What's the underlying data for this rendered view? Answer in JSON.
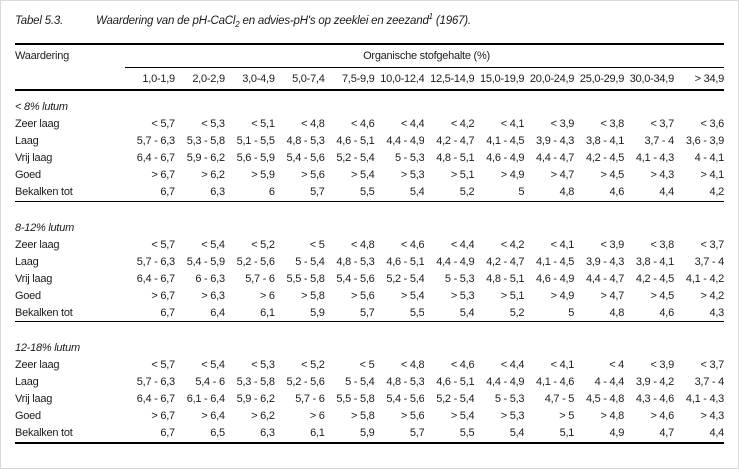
{
  "title": {
    "number": "Tabel 5.3.",
    "part1": "Waardering van de pH-CaCl",
    "subscript": "2",
    "part2": " en advies-pH's op zeeklei en zeezand",
    "superscript": "1",
    "part3": " (1967)."
  },
  "table": {
    "corner_header": "Waardering",
    "group_header": "Organische stofgehalte (%)",
    "columns": [
      "1,0-1,9",
      "2,0-2,9",
      "3,0-4,9",
      "5,0-7,4",
      "7,5-9,9",
      "10,0-12,4",
      "12,5-14,9",
      "15,0-19,9",
      "20,0-24,9",
      "25,0-29,9",
      "30,0-34,9",
      "> 34,9"
    ],
    "sections": [
      {
        "name": "< 8% lutum",
        "rows": [
          {
            "label": "Zeer laag",
            "values": [
              "< 5,7",
              "< 5,3",
              "< 5,1",
              "< 4,8",
              "< 4,6",
              "< 4,4",
              "< 4,2",
              "< 4,1",
              "< 3,9",
              "< 3,8",
              "< 3,7",
              "< 3,6"
            ]
          },
          {
            "label": "Laag",
            "values": [
              "5,7 - 6,3",
              "5,3 - 5,8",
              "5,1 - 5,5",
              "4,8 - 5,3",
              "4,6 - 5,1",
              "4,4 - 4,9",
              "4,2 - 4,7",
              "4,1 - 4,5",
              "3,9 - 4,3",
              "3,8 - 4,1",
              "3,7 - 4",
              "3,6 - 3,9"
            ]
          },
          {
            "label": "Vrij laag",
            "values": [
              "6,4 - 6,7",
              "5,9 - 6,2",
              "5,6 - 5,9",
              "5,4 - 5,6",
              "5,2 - 5,4",
              "5 - 5,3",
              "4,8 - 5,1",
              "4,6 - 4,9",
              "4,4 - 4,7",
              "4,2 - 4,5",
              "4,1 - 4,3",
              "4 - 4,1"
            ]
          },
          {
            "label": "Goed",
            "values": [
              "> 6,7",
              "> 6,2",
              "> 5,9",
              "> 5,6",
              "> 5,4",
              "> 5,3",
              "> 5,1",
              "> 4,9",
              "> 4,7",
              "> 4,5",
              "> 4,3",
              "> 4,1"
            ]
          },
          {
            "label": "Bekalken tot",
            "values": [
              "6,7",
              "6,3",
              "6",
              "5,7",
              "5,5",
              "5,4",
              "5,2",
              "5",
              "4,8",
              "4,6",
              "4,4",
              "4,2"
            ]
          }
        ]
      },
      {
        "name": "8-12% lutum",
        "rows": [
          {
            "label": "Zeer laag",
            "values": [
              "< 5,7",
              "< 5,4",
              "< 5,2",
              "< 5",
              "< 4,8",
              "< 4,6",
              "< 4,4",
              "< 4,2",
              "< 4,1",
              "< 3,9",
              "< 3,8",
              "< 3,7"
            ]
          },
          {
            "label": "Laag",
            "values": [
              "5,7 - 6,3",
              "5,4 - 5,9",
              "5,2 - 5,6",
              "5 - 5,4",
              "4,8 - 5,3",
              "4,6 - 5,1",
              "4,4 - 4,9",
              "4,2 - 4,7",
              "4,1 - 4,5",
              "3,9 - 4,3",
              "3,8 - 4,1",
              "3,7 - 4"
            ]
          },
          {
            "label": "Vrij laag",
            "values": [
              "6,4 - 6,7",
              "6 - 6,3",
              "5,7 - 6",
              "5,5 - 5,8",
              "5,4 - 5,6",
              "5,2 - 5,4",
              "5 - 5,3",
              "4,8 - 5,1",
              "4,6 - 4,9",
              "4,4 - 4,7",
              "4,2 - 4,5",
              "4,1 - 4,2"
            ]
          },
          {
            "label": "Goed",
            "values": [
              "> 6,7",
              "> 6,3",
              "> 6",
              "> 5,8",
              "> 5,6",
              "> 5,4",
              "> 5,3",
              "> 5,1",
              "> 4,9",
              "> 4,7",
              "> 4,5",
              "> 4,2"
            ]
          },
          {
            "label": "Bekalken tot",
            "values": [
              "6,7",
              "6,4",
              "6,1",
              "5,9",
              "5,7",
              "5,5",
              "5,4",
              "5,2",
              "5",
              "4,8",
              "4,6",
              "4,3"
            ]
          }
        ]
      },
      {
        "name": "12-18% lutum",
        "rows": [
          {
            "label": "Zeer laag",
            "values": [
              "< 5,7",
              "< 5,4",
              "< 5,3",
              "< 5,2",
              "< 5",
              "< 4,8",
              "< 4,6",
              "< 4,4",
              "< 4,1",
              "< 4",
              "< 3,9",
              "< 3,7"
            ]
          },
          {
            "label": "Laag",
            "values": [
              "5,7 - 6,3",
              "5,4 - 6",
              "5,3 - 5,8",
              "5,2 - 5,6",
              "5 - 5,4",
              "4,8 - 5,3",
              "4,6 - 5,1",
              "4,4 - 4,9",
              "4,1 - 4,6",
              "4 - 4,4",
              "3,9 - 4,2",
              "3,7 - 4"
            ]
          },
          {
            "label": "Vrij laag",
            "values": [
              "6,4 - 6,7",
              "6,1 - 6,4",
              "5,9 - 6,2",
              "5,7 - 6",
              "5,5 - 5,8",
              "5,4 - 5,6",
              "5,2 - 5,4",
              "5 - 5,3",
              "4,7 - 5",
              "4,5 - 4,8",
              "4,3 - 4,6",
              "4,1 - 4,3"
            ]
          },
          {
            "label": "Goed",
            "values": [
              "> 6,7",
              "> 6,4",
              "> 6,2",
              "> 6",
              "> 5,8",
              "> 5,6",
              "> 5,4",
              "> 5,3",
              "> 5",
              "> 4,8",
              "> 4,6",
              "> 4,3"
            ]
          },
          {
            "label": "Bekalken tot",
            "values": [
              "6,7",
              "6,5",
              "6,3",
              "6,1",
              "5,9",
              "5,7",
              "5,5",
              "5,4",
              "5,1",
              "4,9",
              "4,7",
              "4,4"
            ]
          }
        ]
      }
    ]
  }
}
